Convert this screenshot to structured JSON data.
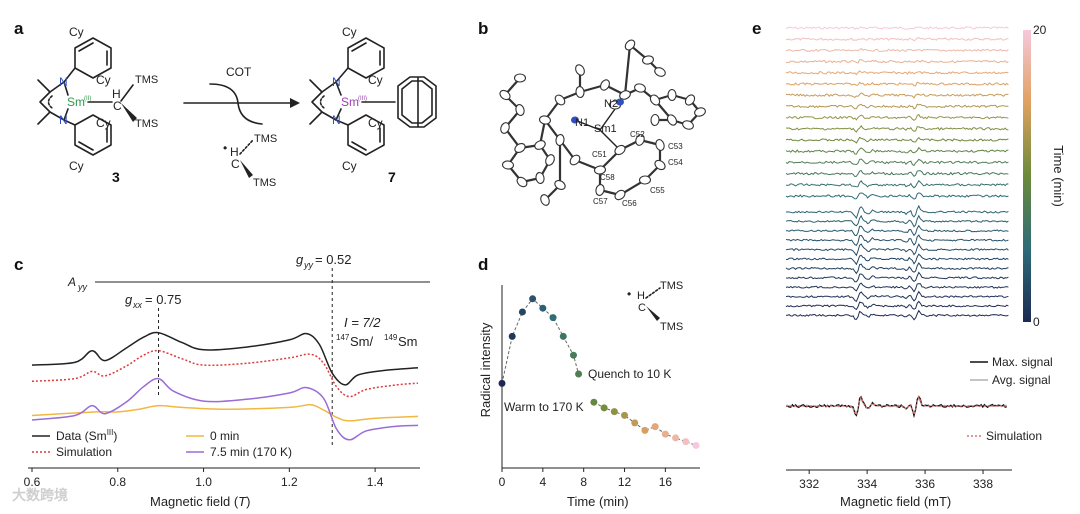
{
  "panels": {
    "a": {
      "label": "a",
      "reagent": "COT",
      "compound_left_number": "3",
      "compound_right_number": "7",
      "left": {
        "metal": "Sm",
        "oxidation_state": "(II)",
        "ligand_N": "N",
        "cy": "Cy",
        "tms": "TMS",
        "h": "H",
        "c": "C"
      },
      "right": {
        "metal": "Sm",
        "oxidation_state": "(III)",
        "ligand_N": "N",
        "cy": "Cy"
      },
      "byproduct": {
        "c": "C",
        "h": "H",
        "tms": "TMS",
        "dot": "•"
      }
    },
    "b": {
      "label": "b",
      "atom_labels": [
        "N1",
        "N2",
        "Sm1",
        "C51",
        "C52",
        "C53",
        "C54",
        "C55",
        "C56",
        "C57",
        "C58"
      ]
    },
    "c": {
      "label": "c"
    },
    "d": {
      "label": "d",
      "radical": {
        "h": "H",
        "c": "C",
        "tms": "TMS",
        "dot": "•"
      }
    },
    "e": {
      "label": "e"
    }
  },
  "watermark": "大数跨境",
  "colors": {
    "data": "#222222",
    "simulation": "#e03a3a",
    "zero_min": "#f0b840",
    "seven_min": "#9b6bd8",
    "max_signal": "#111111",
    "avg_signal": "#b0b0b0",
    "sim_dotted": "#e07070",
    "sm_ii": "#2e9a4a",
    "sm_iii": "#9b3fb5",
    "n_blue": "#3050c0"
  },
  "chart_data": [
    {
      "id": "c",
      "type": "line",
      "xlabel": "Magnetic field (T)",
      "xlabel_main": "Magnetic field (",
      "xlabel_unit": "T",
      "xlabel_close": ")",
      "xlim": [
        0.6,
        1.5
      ],
      "xticks": [
        0.6,
        0.8,
        1.0,
        1.2,
        1.4
      ],
      "xtick_labels": [
        "0.6",
        "0.8",
        "1.0",
        "1.2",
        "1.4"
      ],
      "annotations": {
        "a_yy": {
          "main": "A",
          "sub": "yy"
        },
        "g_yy": {
          "main": "g",
          "sub": "yy",
          "rest": " = 0.52",
          "x": 1.3
        },
        "g_xx": {
          "main": "g",
          "sub": "xx",
          "rest": " = 0.75",
          "x": 0.895
        },
        "spin": "I = 7/2",
        "isotopes": {
          "sup1": "147",
          "el1": "Sm/",
          "sup2": "149",
          "el2": "Sm"
        }
      },
      "legend": [
        {
          "label": "Data (Sm",
          "sup": "III",
          "close": ")",
          "series": "data"
        },
        {
          "label": "Simulation",
          "series": "simulation"
        },
        {
          "label": "0 min",
          "series": "zero_min"
        },
        {
          "label": "7.5 min (170 K)",
          "series": "seven_min"
        }
      ],
      "series": [
        {
          "name": "data",
          "offset": 3.0,
          "points": [
            [
              0.6,
              0.05
            ],
            [
              0.7,
              0.2
            ],
            [
              0.74,
              0.85
            ],
            [
              0.77,
              0.3
            ],
            [
              0.82,
              1.0
            ],
            [
              0.86,
              1.6
            ],
            [
              0.895,
              1.85
            ],
            [
              0.95,
              1.3
            ],
            [
              1.0,
              0.9
            ],
            [
              1.1,
              1.05
            ],
            [
              1.2,
              1.45
            ],
            [
              1.24,
              1.8
            ],
            [
              1.27,
              1.2
            ],
            [
              1.3,
              -0.4
            ],
            [
              1.33,
              -1.05
            ],
            [
              1.36,
              -0.5
            ],
            [
              1.42,
              -0.25
            ],
            [
              1.5,
              -0.1
            ]
          ]
        },
        {
          "name": "simulation",
          "offset": 2.15,
          "points": [
            [
              0.6,
              0.0
            ],
            [
              0.7,
              0.15
            ],
            [
              0.74,
              0.55
            ],
            [
              0.77,
              0.3
            ],
            [
              0.82,
              0.85
            ],
            [
              0.86,
              1.45
            ],
            [
              0.895,
              1.7
            ],
            [
              0.95,
              1.25
            ],
            [
              1.0,
              0.9
            ],
            [
              1.1,
              1.0
            ],
            [
              1.2,
              1.3
            ],
            [
              1.25,
              1.5
            ],
            [
              1.28,
              1.0
            ],
            [
              1.31,
              -0.3
            ],
            [
              1.34,
              -0.85
            ],
            [
              1.38,
              -0.45
            ],
            [
              1.45,
              -0.2
            ],
            [
              1.5,
              -0.1
            ]
          ]
        },
        {
          "name": "zero_min",
          "offset": 0.25,
          "points": [
            [
              0.6,
              0.0
            ],
            [
              0.75,
              0.2
            ],
            [
              0.8,
              0.2
            ],
            [
              0.85,
              0.35
            ],
            [
              0.895,
              0.55
            ],
            [
              0.95,
              0.45
            ],
            [
              1.05,
              0.35
            ],
            [
              1.2,
              0.45
            ],
            [
              1.25,
              0.6
            ],
            [
              1.28,
              0.3
            ],
            [
              1.31,
              -0.1
            ],
            [
              1.34,
              -0.3
            ],
            [
              1.4,
              -0.15
            ],
            [
              1.5,
              -0.05
            ]
          ]
        },
        {
          "name": "seven_min",
          "offset": 0.0,
          "points": [
            [
              0.6,
              0.0
            ],
            [
              0.7,
              0.25
            ],
            [
              0.74,
              0.8
            ],
            [
              0.77,
              0.35
            ],
            [
              0.82,
              1.0
            ],
            [
              0.86,
              1.85
            ],
            [
              0.895,
              2.3
            ],
            [
              0.93,
              1.6
            ],
            [
              1.0,
              1.05
            ],
            [
              1.1,
              1.15
            ],
            [
              1.2,
              1.5
            ],
            [
              1.24,
              1.8
            ],
            [
              1.28,
              1.2
            ],
            [
              1.31,
              -0.5
            ],
            [
              1.34,
              -1.1
            ],
            [
              1.38,
              -0.6
            ],
            [
              1.45,
              -0.35
            ],
            [
              1.5,
              -0.3
            ]
          ]
        }
      ]
    },
    {
      "id": "d",
      "type": "scatter",
      "xlabel": "Time (min)",
      "ylabel": "Radical intensity",
      "xlim": [
        0,
        19
      ],
      "ylim": [
        0,
        1
      ],
      "xticks": [
        0,
        4,
        8,
        12,
        16
      ],
      "xtick_labels": [
        "0",
        "4",
        "8",
        "12",
        "16"
      ],
      "annotations": {
        "quench": "Quench to 10 K",
        "warm": "Warm to 170 K"
      },
      "series": [
        {
          "name": "warm",
          "x": [
            0,
            1,
            2,
            3,
            4,
            5,
            6,
            7,
            7.5
          ],
          "y": [
            0.45,
            0.7,
            0.83,
            0.9,
            0.85,
            0.8,
            0.7,
            0.6,
            0.5
          ]
        },
        {
          "name": "quench",
          "x": [
            9,
            10,
            11,
            12,
            13,
            14,
            15,
            16,
            17,
            18,
            19
          ],
          "y": [
            0.35,
            0.32,
            0.3,
            0.28,
            0.24,
            0.2,
            0.22,
            0.18,
            0.16,
            0.14,
            0.12
          ]
        }
      ]
    },
    {
      "id": "e",
      "type": "line",
      "xlabel": "Magnetic field (mT)",
      "xlim": [
        331.2,
        339
      ],
      "xticks": [
        332,
        334,
        336,
        338
      ],
      "xtick_labels": [
        "332",
        "334",
        "336",
        "338"
      ],
      "colorbar": {
        "label": "Time (min)",
        "min_label": "0",
        "max_label": "20",
        "min": 0,
        "max": 20
      },
      "stack": {
        "top_count": 16,
        "bottom_count": 12,
        "top_times": [
          20,
          19,
          18,
          17,
          16,
          15,
          14,
          13,
          12,
          11,
          10,
          9,
          8,
          7,
          6,
          5
        ],
        "bottom_times": [
          4.5,
          4,
          3.5,
          3,
          2.5,
          2,
          1.5,
          1,
          0.75,
          0.5,
          0.25,
          0
        ]
      },
      "legend": [
        {
          "label": "Max. signal",
          "series": "max_signal"
        },
        {
          "label": "Avg. signal",
          "series": "avg_signal"
        },
        {
          "label": "Simulation",
          "series": "sim_dotted"
        }
      ],
      "lines": [
        333.7,
        335.7
      ]
    }
  ]
}
